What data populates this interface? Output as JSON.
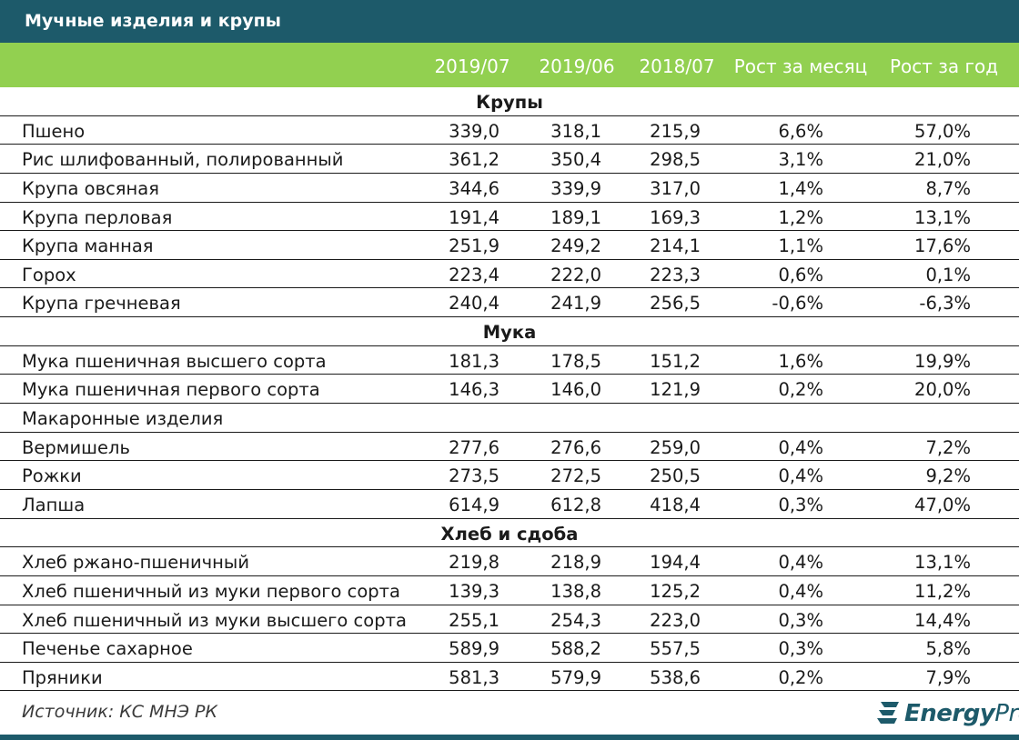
{
  "title": "Мучные изделия и крупы",
  "headers": [
    "2019/07",
    "2019/06",
    "2018/07",
    "Рост за месяц",
    "Рост за год"
  ],
  "rows": [
    {
      "type": "section",
      "name": "Крупы"
    },
    {
      "type": "data",
      "name": "Пшено",
      "v": [
        "339,0",
        "318,1",
        "215,9",
        "6,6%",
        "57,0%"
      ]
    },
    {
      "type": "data",
      "name": "Рис шлифованный, полированный",
      "v": [
        "361,2",
        "350,4",
        "298,5",
        "3,1%",
        "21,0%"
      ]
    },
    {
      "type": "data",
      "name": "Крупа овсяная",
      "v": [
        "344,6",
        "339,9",
        "317,0",
        "1,4%",
        "8,7%"
      ]
    },
    {
      "type": "data",
      "name": "Крупа перловая",
      "v": [
        "191,4",
        "189,1",
        "169,3",
        "1,2%",
        "13,1%"
      ]
    },
    {
      "type": "data",
      "name": "Крупа манная",
      "v": [
        "251,9",
        "249,2",
        "214,1",
        "1,1%",
        "17,6%"
      ]
    },
    {
      "type": "data",
      "name": "Горох",
      "v": [
        "223,4",
        "222,0",
        "223,3",
        "0,6%",
        "0,1%"
      ]
    },
    {
      "type": "data",
      "name": "Крупа гречневая",
      "v": [
        "240,4",
        "241,9",
        "256,5",
        "-0,6%",
        "-6,3%"
      ]
    },
    {
      "type": "section",
      "name": "Мука"
    },
    {
      "type": "data",
      "name": "Мука пшеничная высшего сорта",
      "v": [
        "181,3",
        "178,5",
        "151,2",
        "1,6%",
        "19,9%"
      ]
    },
    {
      "type": "data",
      "name": "Мука пшеничная первого сорта",
      "v": [
        "146,3",
        "146,0",
        "121,9",
        "0,2%",
        "20,0%"
      ]
    },
    {
      "type": "label",
      "name": "Макаронные изделия"
    },
    {
      "type": "data",
      "name": "Вермишель",
      "v": [
        "277,6",
        "276,6",
        "259,0",
        "0,4%",
        "7,2%"
      ]
    },
    {
      "type": "data",
      "name": "Рожки",
      "v": [
        "273,5",
        "272,5",
        "250,5",
        "0,4%",
        "9,2%"
      ]
    },
    {
      "type": "data",
      "name": "Лапша",
      "v": [
        "614,9",
        "612,8",
        "418,4",
        "0,3%",
        "47,0%"
      ]
    },
    {
      "type": "section",
      "name": "Хлеб и сдоба"
    },
    {
      "type": "data",
      "name": "Хлеб ржано-пшеничный",
      "v": [
        "219,8",
        "218,9",
        "194,4",
        "0,4%",
        "13,1%"
      ]
    },
    {
      "type": "data",
      "name": "Хлеб пшеничный из муки первого сорта",
      "v": [
        "139,3",
        "138,8",
        "125,2",
        "0,4%",
        "11,2%"
      ]
    },
    {
      "type": "data",
      "name": "Хлеб пшеничный из муки высшего сорта",
      "v": [
        "255,1",
        "254,3",
        "223,0",
        "0,3%",
        "14,4%"
      ]
    },
    {
      "type": "data",
      "name": "Печенье сахарное",
      "v": [
        "589,9",
        "588,2",
        "557,5",
        "0,3%",
        "5,8%"
      ]
    },
    {
      "type": "data",
      "name": "Пряники",
      "v": [
        "581,3",
        "579,9",
        "538,6",
        "0,2%",
        "7,9%"
      ]
    }
  ],
  "source": "Источник: КС МНЭ РК",
  "logo": {
    "bold": "Energy",
    "regular": "Prom"
  },
  "colors": {
    "title_bg": "#1d5a6a",
    "header_bg": "#92d050"
  },
  "icons": {
    "logo": "energyprom-logo-icon"
  }
}
